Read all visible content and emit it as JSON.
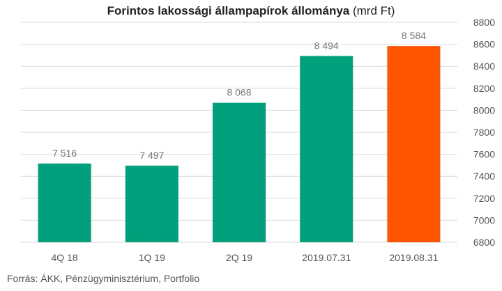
{
  "chart_data": {
    "type": "bar",
    "title": "Forintos lakossági állampapírok állománya",
    "title_unit": "(mrd Ft)",
    "source": "Forrás: ÁKK, Pénzügyminisztérium, Portfolio",
    "categories": [
      "4Q 18",
      "1Q 19",
      "2Q 19",
      "2019.07.31",
      "2019.08.31"
    ],
    "values": [
      7516,
      7497,
      8068,
      8494,
      8584
    ],
    "value_labels": [
      "7 516",
      "7 497",
      "8 068",
      "8 494",
      "8 584"
    ],
    "ylim": [
      6800,
      8800
    ],
    "yticks": [
      6800,
      7000,
      7200,
      7400,
      7600,
      7800,
      8000,
      8200,
      8400,
      8600,
      8800
    ],
    "y_axis_position": "right",
    "grid": true,
    "legend": "none",
    "colors": {
      "bar": "#00a07c",
      "highlight": "#ff5500",
      "grid": "#d9d9d9",
      "tick_text": "#555555",
      "label_text": "#777777"
    },
    "highlight_index": 4
  }
}
